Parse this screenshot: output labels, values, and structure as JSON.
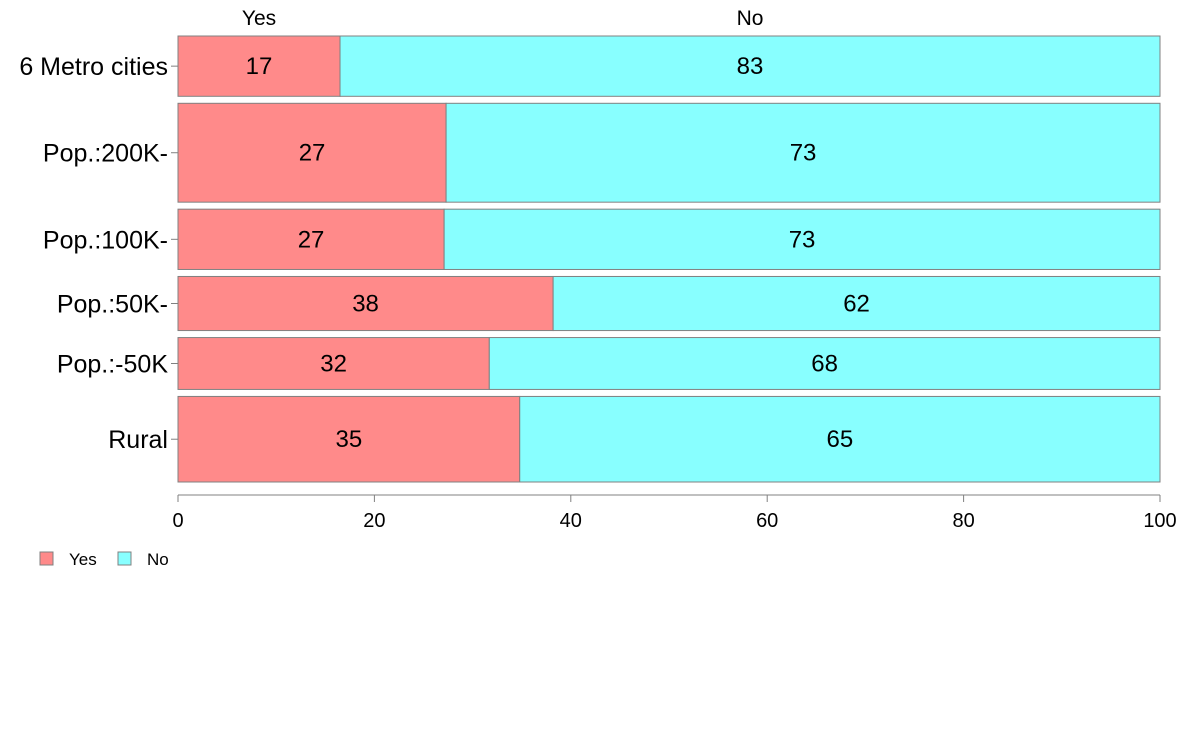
{
  "chart_data": {
    "type": "bar",
    "orientation": "horizontal",
    "stacked": true,
    "title": "",
    "xlabel": "",
    "ylabel": "",
    "xlim": [
      0,
      100
    ],
    "x_ticks": [
      "0",
      "20",
      "40",
      "60",
      "80",
      "100"
    ],
    "categories": [
      "6 Metro cities",
      "Pop.:200K-",
      "Pop.:100K-",
      "Pop.:50K-",
      "Pop.:-50K",
      "Rural"
    ],
    "category_share": [
      0.136,
      0.223,
      0.136,
      0.122,
      0.117,
      0.193
    ],
    "series": [
      {
        "name": "Yes",
        "color": "#ff8a8a",
        "values": [
          16.5,
          27.3,
          27.1,
          38.2,
          31.7,
          34.8
        ],
        "labels": [
          "17",
          "27",
          "27",
          "38",
          "32",
          "35"
        ]
      },
      {
        "name": "No",
        "color": "#88ffff",
        "values": [
          83.5,
          72.7,
          72.9,
          61.8,
          68.3,
          65.2
        ],
        "labels": [
          "83",
          "73",
          "73",
          "62",
          "68",
          "65"
        ]
      }
    ],
    "top_labels": [
      "Yes",
      "No"
    ],
    "grid": false,
    "legend": {
      "position": "bottom-left",
      "entries": [
        "Yes",
        "No"
      ]
    }
  }
}
